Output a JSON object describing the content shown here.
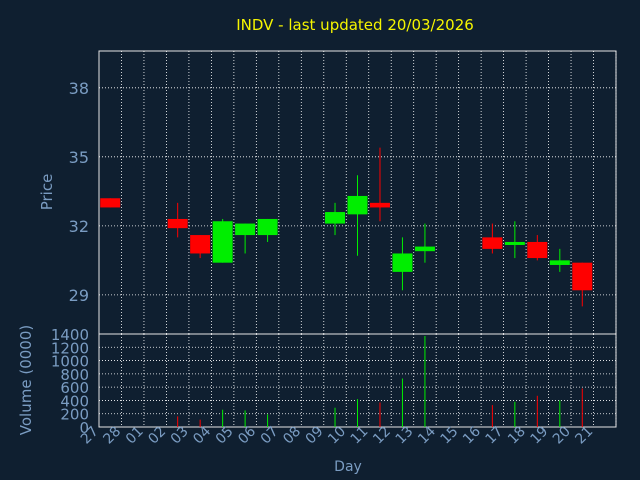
{
  "chart_data": [
    {
      "type": "candlestick",
      "title": "INDV - last updated 20/03/2026",
      "ylabel": "Price",
      "ylim": [
        27.3,
        39.6
      ],
      "yticks": [
        29,
        32,
        35,
        38
      ],
      "grid": true,
      "colors": {
        "up": "#00ee00",
        "down": "#ff0000",
        "background": "#0f1f30",
        "grid": "#ffffff",
        "axis_text": "#7a9cc2",
        "title": "#f5f500"
      },
      "x": [
        "27",
        "28",
        "01",
        "02",
        "03",
        "04",
        "05",
        "06",
        "07",
        "08",
        "09",
        "10",
        "11",
        "12",
        "13",
        "14",
        "15",
        "16",
        "17",
        "18",
        "19",
        "20",
        "21"
      ],
      "candles": [
        {
          "day": "27",
          "open": 33.2,
          "high": 33.2,
          "low": 32.8,
          "close": 32.8
        },
        {
          "day": "02",
          "open": 32.3,
          "high": 33.0,
          "low": 31.5,
          "close": 31.9
        },
        {
          "day": "03",
          "open": 31.6,
          "high": 31.6,
          "low": 30.6,
          "close": 30.8
        },
        {
          "day": "04",
          "open": 30.4,
          "high": 32.3,
          "low": 30.4,
          "close": 32.2
        },
        {
          "day": "05",
          "open": 31.6,
          "high": 32.1,
          "low": 30.8,
          "close": 32.1
        },
        {
          "day": "06",
          "open": 31.6,
          "high": 32.3,
          "low": 31.3,
          "close": 32.3
        },
        {
          "day": "09",
          "open": 32.1,
          "high": 33.0,
          "low": 31.6,
          "close": 32.6
        },
        {
          "day": "10",
          "open": 32.5,
          "high": 34.2,
          "low": 30.7,
          "close": 33.3
        },
        {
          "day": "11",
          "open": 33.0,
          "high": 35.4,
          "low": 32.2,
          "close": 32.8
        },
        {
          "day": "12",
          "open": 30.0,
          "high": 31.5,
          "low": 29.2,
          "close": 30.8
        },
        {
          "day": "13",
          "open": 30.9,
          "high": 32.1,
          "low": 30.4,
          "close": 31.1
        },
        {
          "day": "16",
          "open": 31.5,
          "high": 32.1,
          "low": 30.8,
          "close": 31.0
        },
        {
          "day": "17",
          "open": 31.2,
          "high": 32.2,
          "low": 30.6,
          "close": 31.3
        },
        {
          "day": "18",
          "open": 31.3,
          "high": 31.6,
          "low": 30.5,
          "close": 30.6
        },
        {
          "day": "19",
          "open": 30.3,
          "high": 31.0,
          "low": 30.0,
          "close": 30.5
        },
        {
          "day": "20",
          "open": 30.4,
          "high": 30.4,
          "low": 28.5,
          "close": 29.2
        }
      ]
    },
    {
      "type": "bar",
      "xlabel": "Day",
      "ylabel": "Volume (0000)",
      "ylim": [
        0,
        1400
      ],
      "yticks": [
        0,
        200,
        400,
        600,
        800,
        1000,
        1200,
        1400
      ],
      "x": [
        "27",
        "28",
        "01",
        "02",
        "03",
        "04",
        "05",
        "06",
        "07",
        "08",
        "09",
        "10",
        "11",
        "12",
        "13",
        "14",
        "15",
        "16",
        "17",
        "18",
        "19",
        "20",
        "21"
      ],
      "volumes": [
        {
          "day": "27",
          "value": 0,
          "direction": "down"
        },
        {
          "day": "02",
          "value": 160,
          "direction": "down"
        },
        {
          "day": "03",
          "value": 110,
          "direction": "down"
        },
        {
          "day": "04",
          "value": 260,
          "direction": "up"
        },
        {
          "day": "05",
          "value": 250,
          "direction": "up"
        },
        {
          "day": "06",
          "value": 190,
          "direction": "up"
        },
        {
          "day": "09",
          "value": 290,
          "direction": "up"
        },
        {
          "day": "10",
          "value": 420,
          "direction": "up"
        },
        {
          "day": "11",
          "value": 370,
          "direction": "down"
        },
        {
          "day": "12",
          "value": 730,
          "direction": "up"
        },
        {
          "day": "13",
          "value": 1370,
          "direction": "up"
        },
        {
          "day": "16",
          "value": 330,
          "direction": "down"
        },
        {
          "day": "17",
          "value": 380,
          "direction": "up"
        },
        {
          "day": "18",
          "value": 470,
          "direction": "down"
        },
        {
          "day": "19",
          "value": 400,
          "direction": "up"
        },
        {
          "day": "20",
          "value": 580,
          "direction": "down"
        }
      ]
    }
  ]
}
